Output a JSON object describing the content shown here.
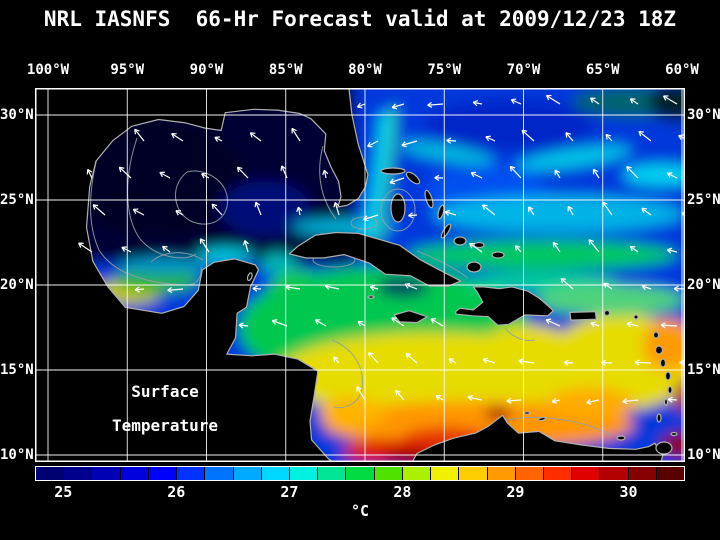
{
  "title": "NRL IASNFS  66-Hr Forecast valid at 2009/12/23 18Z",
  "map": {
    "lon_labels": [
      "100°W",
      "95°W",
      "90°W",
      "85°W",
      "80°W",
      "75°W",
      "70°W",
      "65°W",
      "60°W"
    ],
    "lat_labels_left": [
      "30°N",
      "25°N",
      "20°N",
      "15°N",
      "10°N"
    ],
    "lat_labels_right": [
      "30°N",
      "25°N",
      "20°N",
      "15°N",
      "10°N"
    ],
    "overlay": {
      "line1": "Surface",
      "line2": "Temperature"
    }
  },
  "colorbar": {
    "tick_labels": [
      "25",
      "26",
      "27",
      "28",
      "29",
      "30"
    ],
    "unit": "°C",
    "segment_colors": [
      "#000073",
      "#00008c",
      "#0000b4",
      "#0000dc",
      "#0000ff",
      "#0032ff",
      "#0073ff",
      "#00aaff",
      "#00d7ff",
      "#00f0e1",
      "#00e696",
      "#00dc41",
      "#50e100",
      "#aaf000",
      "#f0f000",
      "#ffcd00",
      "#ff9b00",
      "#ff6400",
      "#ff2d00",
      "#e10000",
      "#b40000",
      "#870000",
      "#5a0000"
    ]
  }
}
